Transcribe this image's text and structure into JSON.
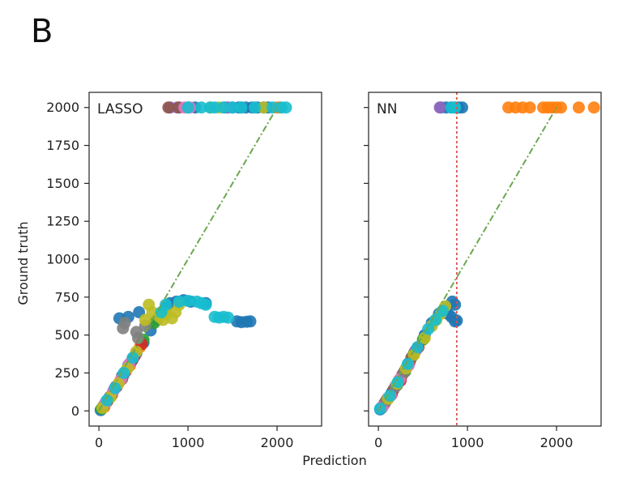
{
  "figure": {
    "panel_letter": "B",
    "xlabel": "Prediction",
    "ylabel": "Ground truth"
  },
  "chart_data": [
    {
      "type": "scatter",
      "title": "LASSO",
      "xlim": [
        -110,
        2500
      ],
      "ylim": [
        -100,
        2100
      ],
      "xticks": [
        0,
        1000,
        2000
      ],
      "yticks": [
        0,
        250,
        500,
        750,
        1000,
        1250,
        1500,
        1750,
        2000
      ],
      "reference_line": {
        "style": "dash-dot",
        "color": "#6aa84f",
        "points": [
          [
            0,
            0
          ],
          [
            2000,
            2000
          ]
        ]
      },
      "series": [
        {
          "color": "#1f77b4",
          "points": [
            [
              20,
              5
            ],
            [
              60,
              40
            ],
            [
              120,
              90
            ],
            [
              190,
              160
            ],
            [
              260,
              230
            ],
            [
              330,
              300
            ],
            [
              420,
              380
            ],
            [
              500,
              450
            ],
            [
              580,
              530
            ],
            [
              650,
              600
            ],
            [
              750,
              680
            ],
            [
              800,
              710
            ],
            [
              870,
              720
            ],
            [
              950,
              730
            ],
            [
              1030,
              720
            ],
            [
              1200,
              710
            ],
            [
              230,
              610
            ],
            [
              330,
              620
            ],
            [
              450,
              650
            ],
            [
              1550,
              590
            ],
            [
              1600,
              585
            ],
            [
              1660,
              588
            ],
            [
              1700,
              590
            ],
            [
              1570,
              2000
            ],
            [
              1650,
              2000
            ],
            [
              1720,
              2000
            ],
            [
              1780,
              2000
            ],
            [
              1850,
              2000
            ],
            [
              1900,
              2000
            ],
            [
              1600,
              2000
            ],
            [
              1500,
              2000
            ],
            [
              1000,
              2000
            ],
            [
              1080,
              2000
            ],
            [
              1420,
              2000
            ]
          ]
        },
        {
          "color": "#ff7f0e",
          "points": [
            [
              60,
              25
            ],
            [
              150,
              110
            ],
            [
              240,
              200
            ],
            [
              350,
              300
            ],
            [
              460,
              420
            ],
            [
              2000,
              2000
            ],
            [
              2030,
              2000
            ]
          ]
        },
        {
          "color": "#2ca02c",
          "points": [
            [
              30,
              15
            ],
            [
              90,
              60
            ],
            [
              170,
              140
            ],
            [
              270,
              230
            ],
            [
              380,
              340
            ],
            [
              500,
              470
            ],
            [
              620,
              580
            ],
            [
              700,
              640
            ]
          ]
        },
        {
          "color": "#d62728",
          "points": [
            [
              100,
              70
            ],
            [
              200,
              160
            ],
            [
              300,
              260
            ],
            [
              400,
              360
            ],
            [
              480,
              440
            ]
          ]
        },
        {
          "color": "#9467bd",
          "points": [
            [
              80,
              60
            ],
            [
              180,
              150
            ],
            [
              280,
              240
            ],
            [
              380,
              340
            ],
            [
              800,
              2000
            ],
            [
              880,
              2000
            ],
            [
              1450,
              2000
            ]
          ]
        },
        {
          "color": "#8c564b",
          "points": [
            [
              50,
              30
            ],
            [
              140,
              100
            ],
            [
              260,
              210
            ],
            [
              370,
              330
            ],
            [
              780,
              2000
            ],
            [
              900,
              2000
            ]
          ]
        },
        {
          "color": "#e377c2",
          "points": [
            [
              70,
              50
            ],
            [
              160,
              130
            ],
            [
              250,
              210
            ],
            [
              340,
              310
            ],
            [
              960,
              2000
            ],
            [
              1020,
              2000
            ]
          ]
        },
        {
          "color": "#7f7f7f",
          "points": [
            [
              270,
              545
            ],
            [
              420,
              520
            ],
            [
              520,
              560
            ],
            [
              440,
              480
            ],
            [
              290,
              580
            ]
          ]
        },
        {
          "color": "#bcbd22",
          "points": [
            [
              40,
              20
            ],
            [
              130,
              90
            ],
            [
              220,
              180
            ],
            [
              320,
              280
            ],
            [
              420,
              390
            ],
            [
              520,
              600
            ],
            [
              560,
              700
            ],
            [
              600,
              650
            ],
            [
              680,
              620
            ],
            [
              720,
              600
            ],
            [
              760,
              640
            ],
            [
              820,
              610
            ],
            [
              860,
              650
            ],
            [
              900,
              700
            ],
            [
              1250,
              2000
            ],
            [
              1350,
              2000
            ],
            [
              1850,
              2000
            ]
          ]
        },
        {
          "color": "#17becf",
          "points": [
            [
              90,
              70
            ],
            [
              180,
              150
            ],
            [
              280,
              250
            ],
            [
              380,
              350
            ],
            [
              700,
              650
            ],
            [
              750,
              700
            ],
            [
              900,
              720
            ],
            [
              1000,
              725
            ],
            [
              1100,
              720
            ],
            [
              1150,
              710
            ],
            [
              1200,
              700
            ],
            [
              1300,
              620
            ],
            [
              1350,
              615
            ],
            [
              1400,
              620
            ],
            [
              1450,
              615
            ],
            [
              1000,
              2000
            ],
            [
              1150,
              2000
            ],
            [
              1250,
              2000
            ],
            [
              1300,
              2000
            ],
            [
              1400,
              2000
            ],
            [
              1500,
              2000
            ],
            [
              1600,
              2000
            ],
            [
              1750,
              2000
            ],
            [
              1950,
              2000
            ],
            [
              2050,
              2000
            ],
            [
              2100,
              2000
            ]
          ]
        }
      ]
    },
    {
      "type": "scatter",
      "title": "NN",
      "xlim": [
        -110,
        2500
      ],
      "ylim": [
        -100,
        2100
      ],
      "xticks": [
        0,
        1000,
        2000
      ],
      "yticks": [
        0,
        250,
        500,
        750,
        1000,
        1250,
        1500,
        1750,
        2000
      ],
      "reference_line": {
        "style": "dash-dot",
        "color": "#6aa84f",
        "points": [
          [
            0,
            0
          ],
          [
            2000,
            2000
          ]
        ]
      },
      "vertical_line": {
        "x": 880,
        "style": "dotted",
        "color": "#d9534f"
      },
      "series": [
        {
          "color": "#1f77b4",
          "points": [
            [
              20,
              10
            ],
            [
              80,
              60
            ],
            [
              150,
              120
            ],
            [
              230,
              200
            ],
            [
              320,
              290
            ],
            [
              420,
              400
            ],
            [
              520,
              500
            ],
            [
              600,
              580
            ],
            [
              680,
              640
            ],
            [
              740,
              660
            ],
            [
              780,
              640
            ],
            [
              820,
              620
            ],
            [
              860,
              590
            ],
            [
              880,
              595
            ],
            [
              860,
              700
            ],
            [
              830,
              720
            ],
            [
              760,
              680
            ],
            [
              700,
              2000
            ],
            [
              760,
              2000
            ],
            [
              820,
              2000
            ],
            [
              860,
              2000
            ],
            [
              900,
              2000
            ],
            [
              940,
              2000
            ]
          ]
        },
        {
          "color": "#ff7f0e",
          "points": [
            [
              1460,
              2000
            ],
            [
              1540,
              2000
            ],
            [
              1620,
              2000
            ],
            [
              1700,
              2000
            ],
            [
              1850,
              2000
            ],
            [
              1900,
              2000
            ],
            [
              1950,
              2000
            ],
            [
              2000,
              2000
            ],
            [
              2050,
              2000
            ],
            [
              2250,
              2000
            ],
            [
              2420,
              2000
            ]
          ]
        },
        {
          "color": "#2ca02c",
          "points": [
            [
              40,
              20
            ],
            [
              120,
              90
            ],
            [
              210,
              170
            ],
            [
              300,
              260
            ],
            [
              400,
              380
            ],
            [
              500,
              470
            ]
          ]
        },
        {
          "color": "#d62728",
          "points": [
            [
              60,
              40
            ],
            [
              150,
              110
            ],
            [
              250,
              200
            ],
            [
              350,
              320
            ],
            [
              450,
              420
            ]
          ]
        },
        {
          "color": "#9467bd",
          "points": [
            [
              30,
              20
            ],
            [
              100,
              80
            ],
            [
              200,
              170
            ],
            [
              310,
              280
            ],
            [
              410,
              390
            ],
            [
              690,
              2000
            ]
          ]
        },
        {
          "color": "#8c564b",
          "points": [
            [
              70,
              50
            ],
            [
              170,
              140
            ],
            [
              270,
              240
            ],
            [
              370,
              350
            ]
          ]
        },
        {
          "color": "#e377c2",
          "points": [
            [
              50,
              30
            ],
            [
              140,
              100
            ],
            [
              240,
              210
            ],
            [
              340,
              300
            ]
          ]
        },
        {
          "color": "#7f7f7f",
          "points": [
            [
              90,
              70
            ],
            [
              190,
              160
            ],
            [
              290,
              260
            ]
          ]
        },
        {
          "color": "#bcbd22",
          "points": [
            [
              110,
              80
            ],
            [
              210,
              180
            ],
            [
              310,
              280
            ],
            [
              400,
              370
            ],
            [
              520,
              480
            ],
            [
              600,
              560
            ],
            [
              650,
              600
            ],
            [
              700,
              640
            ],
            [
              750,
              690
            ]
          ]
        },
        {
          "color": "#17becf",
          "points": [
            [
              20,
              15
            ],
            [
              130,
              100
            ],
            [
              220,
              190
            ],
            [
              330,
              310
            ],
            [
              440,
              420
            ],
            [
              560,
              540
            ],
            [
              640,
              600
            ],
            [
              720,
              660
            ],
            [
              820,
              2000
            ],
            [
              860,
              2000
            ]
          ]
        }
      ]
    }
  ]
}
